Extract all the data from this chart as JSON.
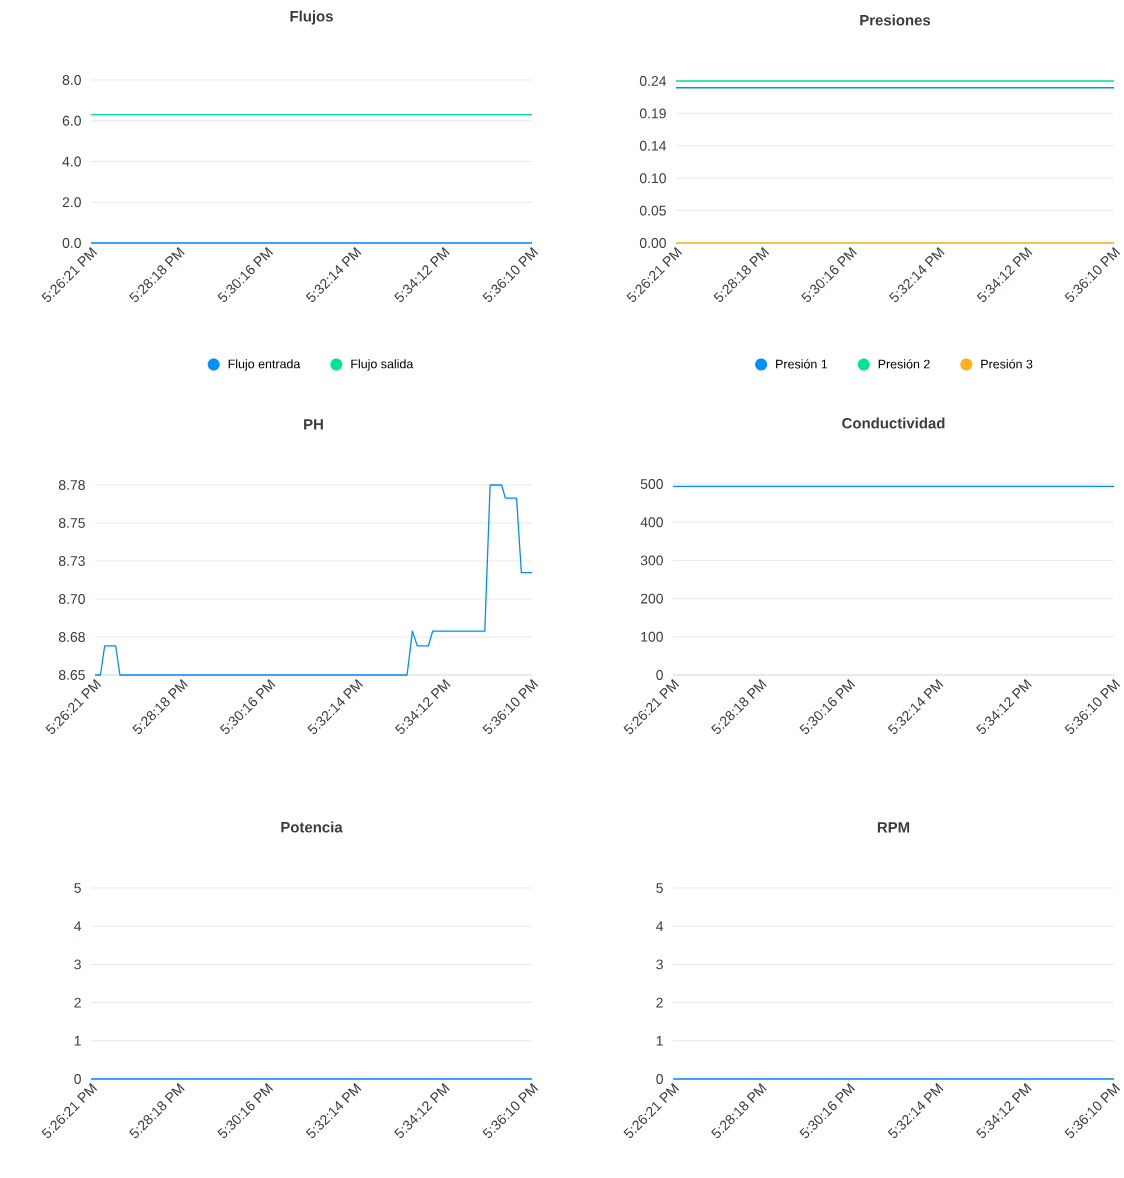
{
  "chart_data": [
    {
      "type": "line",
      "title": "Flujos",
      "xlim": [
        17.439167,
        17.602778
      ],
      "xticks": [
        {
          "value": 17.439167,
          "label": "5:26:21 PM"
        },
        {
          "value": 17.471667,
          "label": "5:28:18 PM"
        },
        {
          "value": 17.504444,
          "label": "5:30:16 PM"
        },
        {
          "value": 17.537222,
          "label": "5:32:14 PM"
        },
        {
          "value": 17.57,
          "label": "5:34:12 PM"
        },
        {
          "value": 17.602778,
          "label": "5:36:10 PM"
        }
      ],
      "ylim": [
        0,
        8
      ],
      "yticks": [
        {
          "value": 0,
          "label": "0.0"
        },
        {
          "value": 2,
          "label": "2.0"
        },
        {
          "value": 4,
          "label": "4.0"
        },
        {
          "value": 6,
          "label": "6.0"
        },
        {
          "value": 8,
          "label": "8.0"
        }
      ],
      "grid": "y",
      "legend": "bottom",
      "series": [
        {
          "name": "Flujo entrada",
          "color": "#008ffb",
          "x": [
            17.439167,
            17.602778
          ],
          "values": [
            0,
            0
          ]
        },
        {
          "name": "Flujo salida",
          "color": "#00e396",
          "x": [
            17.439167,
            17.602778
          ],
          "values": [
            6.3,
            6.3
          ]
        }
      ]
    },
    {
      "type": "line",
      "title": "Presiones",
      "xlim": [
        17.439167,
        17.602778
      ],
      "xticks": [
        {
          "value": 17.439167,
          "label": "5:26:21 PM"
        },
        {
          "value": 17.471667,
          "label": "5:28:18 PM"
        },
        {
          "value": 17.504444,
          "label": "5:30:16 PM"
        },
        {
          "value": 17.537222,
          "label": "5:32:14 PM"
        },
        {
          "value": 17.57,
          "label": "5:34:12 PM"
        },
        {
          "value": 17.602778,
          "label": "5:36:10 PM"
        }
      ],
      "ylim": [
        0,
        0.24
      ],
      "yticks": [
        {
          "value": 0,
          "label": "0.00"
        },
        {
          "value": 0.048,
          "label": "0.05"
        },
        {
          "value": 0.096,
          "label": "0.10"
        },
        {
          "value": 0.144,
          "label": "0.14"
        },
        {
          "value": 0.192,
          "label": "0.19"
        },
        {
          "value": 0.24,
          "label": "0.24"
        }
      ],
      "grid": "y",
      "legend": "bottom",
      "series": [
        {
          "name": "Presión 1",
          "color": "#008ffb",
          "x": [
            17.439167,
            17.602778
          ],
          "values": [
            0.23,
            0.23
          ]
        },
        {
          "name": "Presión 2",
          "color": "#00e396",
          "x": [
            17.439167,
            17.602778
          ],
          "values": [
            0.24,
            0.24
          ]
        },
        {
          "name": "Presión 3",
          "color": "#feb019",
          "x": [
            17.439167,
            17.602778
          ],
          "values": [
            0,
            0
          ]
        }
      ]
    },
    {
      "type": "line",
      "title": "PH",
      "xlim": [
        17.439167,
        17.602778
      ],
      "xticks": [
        {
          "value": 17.439167,
          "label": "5:26:21 PM"
        },
        {
          "value": 17.471667,
          "label": "5:28:18 PM"
        },
        {
          "value": 17.504444,
          "label": "5:30:16 PM"
        },
        {
          "value": 17.537222,
          "label": "5:32:14 PM"
        },
        {
          "value": 17.57,
          "label": "5:34:12 PM"
        },
        {
          "value": 17.602778,
          "label": "5:36:10 PM"
        }
      ],
      "ylim": [
        8.65,
        8.78
      ],
      "yticks": [
        {
          "value": 8.65,
          "label": "8.65"
        },
        {
          "value": 8.676,
          "label": "8.68"
        },
        {
          "value": 8.702,
          "label": "8.70"
        },
        {
          "value": 8.728,
          "label": "8.73"
        },
        {
          "value": 8.754,
          "label": "8.75"
        },
        {
          "value": 8.78,
          "label": "8.78"
        }
      ],
      "grid": "y",
      "series": [
        {
          "color": "#008ffb",
          "x": [
            17.4392,
            17.4412,
            17.4428,
            17.4469,
            17.4485,
            17.556,
            17.558,
            17.5598,
            17.564,
            17.5656,
            17.5851,
            17.5871,
            17.5914,
            17.5928,
            17.597,
            17.5988,
            17.602778
          ],
          "values": [
            8.65,
            8.65,
            8.67,
            8.67,
            8.65,
            8.65,
            8.68,
            8.67,
            8.67,
            8.68,
            8.68,
            8.78,
            8.78,
            8.771,
            8.771,
            8.72,
            8.72
          ]
        }
      ]
    },
    {
      "type": "line",
      "title": "Conductividad",
      "xlim": [
        17.439167,
        17.602778
      ],
      "xticks": [
        {
          "value": 17.439167,
          "label": "5:26:21 PM"
        },
        {
          "value": 17.471667,
          "label": "5:28:18 PM"
        },
        {
          "value": 17.504444,
          "label": "5:30:16 PM"
        },
        {
          "value": 17.537222,
          "label": "5:32:14 PM"
        },
        {
          "value": 17.57,
          "label": "5:34:12 PM"
        },
        {
          "value": 17.602778,
          "label": "5:36:10 PM"
        }
      ],
      "ylim": [
        0,
        500
      ],
      "yticks": [
        0,
        100,
        200,
        300,
        400,
        500
      ],
      "grid": "y",
      "series": [
        {
          "color": "#008ffb",
          "x": [
            17.439167,
            17.602778
          ],
          "values": [
            494,
            494
          ]
        }
      ]
    },
    {
      "type": "line",
      "title": "Potencia",
      "xlim": [
        17.439167,
        17.602778
      ],
      "xticks": [
        {
          "value": 17.439167,
          "label": "5:26:21 PM"
        },
        {
          "value": 17.471667,
          "label": "5:28:18 PM"
        },
        {
          "value": 17.504444,
          "label": "5:30:16 PM"
        },
        {
          "value": 17.537222,
          "label": "5:32:14 PM"
        },
        {
          "value": 17.57,
          "label": "5:34:12 PM"
        },
        {
          "value": 17.602778,
          "label": "5:36:10 PM"
        }
      ],
      "ylim": [
        0,
        5
      ],
      "yticks": [
        0,
        1,
        2,
        3,
        4,
        5
      ],
      "grid": "y",
      "series": [
        {
          "color": "#008ffb",
          "x": [
            17.439167,
            17.602778
          ],
          "values": [
            0,
            0
          ]
        }
      ]
    },
    {
      "type": "line",
      "title": "RPM",
      "xlim": [
        17.439167,
        17.602778
      ],
      "xticks": [
        {
          "value": 17.439167,
          "label": "5:26:21 PM"
        },
        {
          "value": 17.471667,
          "label": "5:28:18 PM"
        },
        {
          "value": 17.504444,
          "label": "5:30:16 PM"
        },
        {
          "value": 17.537222,
          "label": "5:32:14 PM"
        },
        {
          "value": 17.57,
          "label": "5:34:12 PM"
        },
        {
          "value": 17.602778,
          "label": "5:36:10 PM"
        }
      ],
      "ylim": [
        0,
        5
      ],
      "yticks": [
        0,
        1,
        2,
        3,
        4,
        5
      ],
      "grid": "y",
      "series": [
        {
          "color": "#008ffb",
          "x": [
            17.439167,
            17.602778
          ],
          "values": [
            0,
            0
          ]
        }
      ]
    }
  ]
}
